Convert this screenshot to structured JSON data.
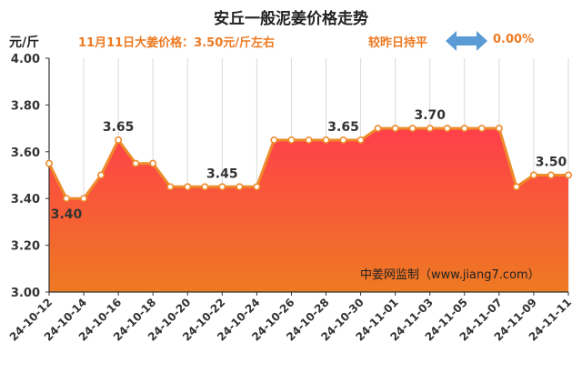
{
  "header": {
    "title": "安丘一般泥姜价格走势",
    "unit": "元/斤",
    "price_note": "11月11日大姜价格：3.50元/斤左右",
    "compare_label": "较昨日持平",
    "compare_value": "0.00%"
  },
  "colors": {
    "line": "#ee8a2a",
    "fill_top": "#ff3f4a",
    "fill_bottom": "#ee7a22",
    "arrow": "#5b9bd5",
    "accent_text": "#ee7a22"
  },
  "chart_data": {
    "type": "area",
    "title": "安丘一般泥姜价格走势",
    "ylabel": "元/斤",
    "ylim": [
      3.0,
      4.0
    ],
    "yticks": [
      "3.00",
      "3.20",
      "3.40",
      "3.60",
      "3.80",
      "4.00"
    ],
    "grid": "vertical",
    "x": [
      "24-10-12",
      "24-10-13",
      "24-10-14",
      "24-10-15",
      "24-10-16",
      "24-10-17",
      "24-10-18",
      "24-10-19",
      "24-10-20",
      "24-10-21",
      "24-10-22",
      "24-10-23",
      "24-10-24",
      "24-10-25",
      "24-10-26",
      "24-10-27",
      "24-10-28",
      "24-10-29",
      "24-10-30",
      "24-10-31",
      "24-11-01",
      "24-11-02",
      "24-11-03",
      "24-11-04",
      "24-11-05",
      "24-11-06",
      "24-11-07",
      "24-11-08",
      "24-11-09",
      "24-11-10",
      "24-11-11"
    ],
    "xtick_labels": [
      "24-10-12",
      "24-10-14",
      "24-10-16",
      "24-10-18",
      "24-10-20",
      "24-10-22",
      "24-10-24",
      "24-10-26",
      "24-10-28",
      "24-10-30",
      "24-11-01",
      "24-11-03",
      "24-11-05",
      "24-11-07",
      "24-11-09",
      "24-11-11"
    ],
    "values": [
      3.55,
      3.4,
      3.4,
      3.5,
      3.65,
      3.55,
      3.55,
      3.45,
      3.45,
      3.45,
      3.45,
      3.45,
      3.45,
      3.65,
      3.65,
      3.65,
      3.65,
      3.65,
      3.65,
      3.7,
      3.7,
      3.7,
      3.7,
      3.7,
      3.7,
      3.7,
      3.7,
      3.45,
      3.5,
      3.5,
      3.5
    ],
    "data_labels": [
      {
        "index": 1,
        "text": "3.40",
        "pos": "below"
      },
      {
        "index": 4,
        "text": "3.65",
        "pos": "above"
      },
      {
        "index": 10,
        "text": "3.45",
        "pos": "above"
      },
      {
        "index": 17,
        "text": "3.65",
        "pos": "above"
      },
      {
        "index": 22,
        "text": "3.70",
        "pos": "above"
      },
      {
        "index": 29,
        "text": "3.50",
        "pos": "above"
      }
    ],
    "annotation": "中姜网监制（www.jiang7.com）"
  }
}
